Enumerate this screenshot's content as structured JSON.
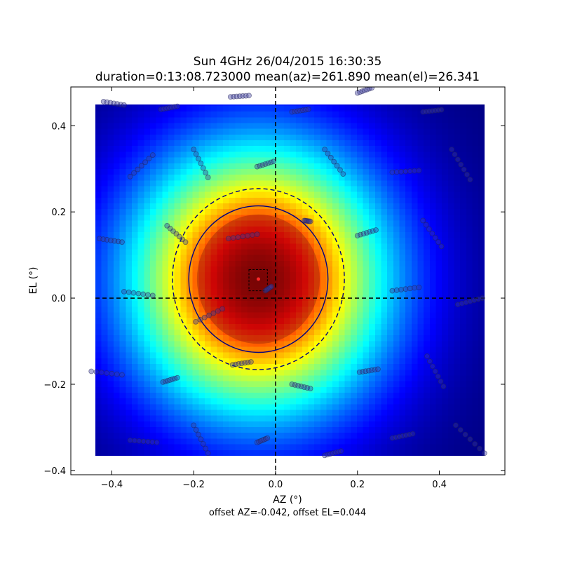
{
  "chart_data": {
    "type": "heatmap",
    "title": "Sun 4GHz 26/04/2015 16:30:35",
    "subtitle": "duration=0:13:08.723000 mean(az)=261.890 mean(el)=26.341",
    "xlabel": "AZ (°)",
    "ylabel": "EL (°)",
    "footer": "offset AZ=-0.042, offset EL=0.044",
    "xlim": [
      -0.5,
      0.56
    ],
    "ylim": [
      -0.41,
      0.49
    ],
    "heatmap_extent": {
      "x": [
        -0.44,
        0.51
      ],
      "y": [
        -0.365,
        0.487
      ]
    },
    "x_ticks": [
      {
        "value": -0.4,
        "label": "−0.4"
      },
      {
        "value": -0.2,
        "label": "−0.2"
      },
      {
        "value": 0.0,
        "label": "0.0"
      },
      {
        "value": 0.2,
        "label": "0.2"
      },
      {
        "value": 0.4,
        "label": "0.4"
      }
    ],
    "y_ticks": [
      {
        "value": -0.4,
        "label": "−0.4"
      },
      {
        "value": -0.2,
        "label": "−0.2"
      },
      {
        "value": 0.0,
        "label": "0.0"
      },
      {
        "value": 0.2,
        "label": "0.2"
      },
      {
        "value": 0.4,
        "label": "0.4"
      }
    ],
    "beam_peak": {
      "x": -0.042,
      "y": 0.044
    },
    "inner_circle": {
      "cx": -0.042,
      "cy": 0.044,
      "radius": 0.17
    },
    "outer_circle": {
      "cx": -0.042,
      "cy": 0.044,
      "radius": 0.21
    },
    "offset_box": {
      "x": [
        -0.065,
        -0.02
      ],
      "y": [
        0.017,
        0.066
      ]
    },
    "crosshair": {
      "x": 0.0,
      "y": 0.0
    },
    "scan_tracks": [
      [
        [
          -0.42,
          0.456
        ],
        [
          -0.37,
          0.448
        ]
      ],
      [
        [
          -0.11,
          0.467
        ],
        [
          -0.065,
          0.47
        ]
      ],
      [
        [
          -0.28,
          0.438
        ],
        [
          -0.24,
          0.445
        ]
      ],
      [
        [
          0.04,
          0.432
        ],
        [
          0.08,
          0.438
        ]
      ],
      [
        [
          0.2,
          0.476
        ],
        [
          0.235,
          0.488
        ]
      ],
      [
        [
          0.36,
          0.432
        ],
        [
          0.405,
          0.437
        ]
      ],
      [
        [
          -0.355,
          0.282
        ],
        [
          -0.3,
          0.332
        ]
      ],
      [
        [
          -0.2,
          0.345
        ],
        [
          -0.165,
          0.28
        ]
      ],
      [
        [
          -0.045,
          0.305
        ],
        [
          -0.005,
          0.317
        ]
      ],
      [
        [
          0.12,
          0.345
        ],
        [
          0.165,
          0.288
        ]
      ],
      [
        [
          0.285,
          0.292
        ],
        [
          0.35,
          0.296
        ]
      ],
      [
        [
          0.43,
          0.345
        ],
        [
          0.475,
          0.275
        ]
      ],
      [
        [
          -0.43,
          0.138
        ],
        [
          -0.375,
          0.13
        ]
      ],
      [
        [
          -0.265,
          0.168
        ],
        [
          -0.22,
          0.13
        ]
      ],
      [
        [
          -0.115,
          0.138
        ],
        [
          -0.045,
          0.148
        ]
      ],
      [
        [
          0.07,
          0.18
        ],
        [
          0.085,
          0.178
        ]
      ],
      [
        [
          0.2,
          0.145
        ],
        [
          0.245,
          0.158
        ]
      ],
      [
        [
          0.36,
          0.18
        ],
        [
          0.405,
          0.12
        ]
      ],
      [
        [
          -0.37,
          0.015
        ],
        [
          -0.3,
          0.006
        ]
      ],
      [
        [
          -0.025,
          0.017
        ],
        [
          -0.01,
          0.027
        ]
      ],
      [
        [
          0.285,
          0.017
        ],
        [
          0.35,
          0.025
        ]
      ],
      [
        [
          0.445,
          -0.015
        ],
        [
          0.505,
          0.0
        ]
      ],
      [
        [
          -0.45,
          -0.17
        ],
        [
          -0.375,
          -0.178
        ]
      ],
      [
        [
          -0.275,
          -0.195
        ],
        [
          -0.24,
          -0.185
        ]
      ],
      [
        [
          -0.195,
          -0.055
        ],
        [
          -0.13,
          -0.025
        ]
      ],
      [
        [
          -0.105,
          -0.155
        ],
        [
          -0.06,
          -0.148
        ]
      ],
      [
        [
          0.04,
          -0.2
        ],
        [
          0.085,
          -0.21
        ]
      ],
      [
        [
          0.205,
          -0.172
        ],
        [
          0.25,
          -0.165
        ]
      ],
      [
        [
          0.37,
          -0.135
        ],
        [
          0.41,
          -0.205
        ]
      ],
      [
        [
          -0.355,
          -0.33
        ],
        [
          -0.29,
          -0.335
        ]
      ],
      [
        [
          -0.2,
          -0.295
        ],
        [
          -0.165,
          -0.36
        ]
      ],
      [
        [
          -0.045,
          -0.335
        ],
        [
          -0.02,
          -0.325
        ]
      ],
      [
        [
          0.12,
          -0.365
        ],
        [
          0.16,
          -0.355
        ]
      ],
      [
        [
          0.285,
          -0.325
        ],
        [
          0.335,
          -0.315
        ]
      ],
      [
        [
          0.44,
          -0.295
        ],
        [
          0.51,
          -0.36
        ]
      ]
    ],
    "colormap": "jet",
    "grid": false
  }
}
